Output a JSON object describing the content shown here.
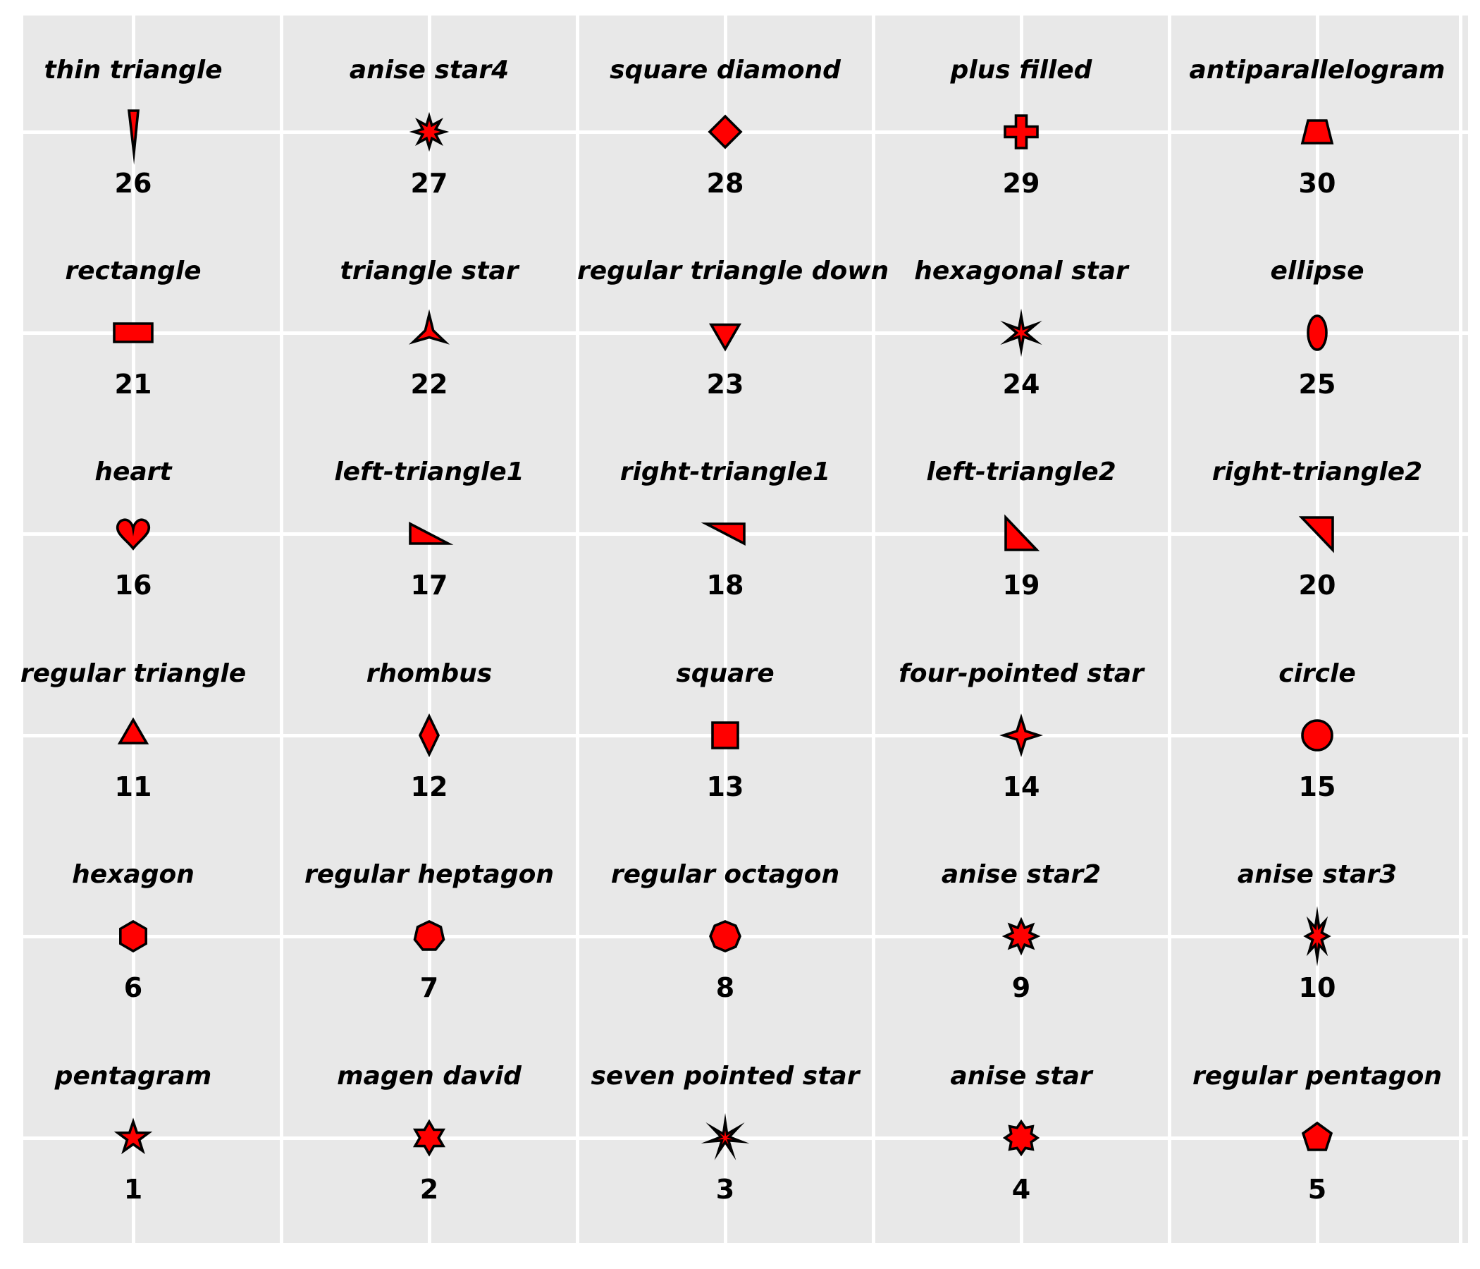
{
  "figure": {
    "background_color": "#ffffff",
    "panel_color": "#e8e8e8",
    "grid_color": "#ffffff",
    "marker_fill": "#ff0000",
    "marker_stroke": "#000000",
    "text_color": "#000000"
  },
  "chart_data": {
    "type": "scatter",
    "title": "",
    "xlabel": "",
    "ylabel": "",
    "grid": true,
    "legend_position": "none",
    "xlim": [
      0.63,
      5.51
    ],
    "ylim": [
      0.48,
      6.58
    ],
    "points": [
      {
        "index": 1,
        "name": "pentagram",
        "x": 1,
        "y": 1
      },
      {
        "index": 2,
        "name": "magen david",
        "x": 2,
        "y": 1
      },
      {
        "index": 3,
        "name": "seven pointed star",
        "x": 3,
        "y": 1
      },
      {
        "index": 4,
        "name": "anise star",
        "x": 4,
        "y": 1
      },
      {
        "index": 5,
        "name": "regular pentagon",
        "x": 5,
        "y": 1
      },
      {
        "index": 6,
        "name": "hexagon",
        "x": 1,
        "y": 2
      },
      {
        "index": 7,
        "name": "regular heptagon",
        "x": 2,
        "y": 2
      },
      {
        "index": 8,
        "name": "regular octagon",
        "x": 3,
        "y": 2
      },
      {
        "index": 9,
        "name": "anise star2",
        "x": 4,
        "y": 2
      },
      {
        "index": 10,
        "name": "anise star3",
        "x": 5,
        "y": 2
      },
      {
        "index": 11,
        "name": "regular triangle",
        "x": 1,
        "y": 3
      },
      {
        "index": 12,
        "name": "rhombus",
        "x": 2,
        "y": 3
      },
      {
        "index": 13,
        "name": "square",
        "x": 3,
        "y": 3
      },
      {
        "index": 14,
        "name": "four-pointed star",
        "x": 4,
        "y": 3
      },
      {
        "index": 15,
        "name": "circle",
        "x": 5,
        "y": 3
      },
      {
        "index": 16,
        "name": "heart",
        "x": 1,
        "y": 4
      },
      {
        "index": 17,
        "name": "left-triangle1",
        "x": 2,
        "y": 4
      },
      {
        "index": 18,
        "name": "right-triangle1",
        "x": 3,
        "y": 4
      },
      {
        "index": 19,
        "name": "left-triangle2",
        "x": 4,
        "y": 4
      },
      {
        "index": 20,
        "name": "right-triangle2",
        "x": 5,
        "y": 4
      },
      {
        "index": 21,
        "name": "rectangle",
        "x": 1,
        "y": 5
      },
      {
        "index": 22,
        "name": "triangle star",
        "x": 2,
        "y": 5
      },
      {
        "index": 23,
        "name": "regular triangle down",
        "x": 3,
        "y": 5
      },
      {
        "index": 24,
        "name": "hexagonal star",
        "x": 4,
        "y": 5
      },
      {
        "index": 25,
        "name": "ellipse",
        "x": 5,
        "y": 5
      },
      {
        "index": 26,
        "name": "thin triangle",
        "x": 1,
        "y": 6
      },
      {
        "index": 27,
        "name": "anise star4",
        "x": 2,
        "y": 6
      },
      {
        "index": 28,
        "name": "square diamond",
        "x": 3,
        "y": 6
      },
      {
        "index": 29,
        "name": "plus filled",
        "x": 4,
        "y": 6
      },
      {
        "index": 30,
        "name": "antiparallelogram",
        "x": 5,
        "y": 6
      }
    ]
  }
}
